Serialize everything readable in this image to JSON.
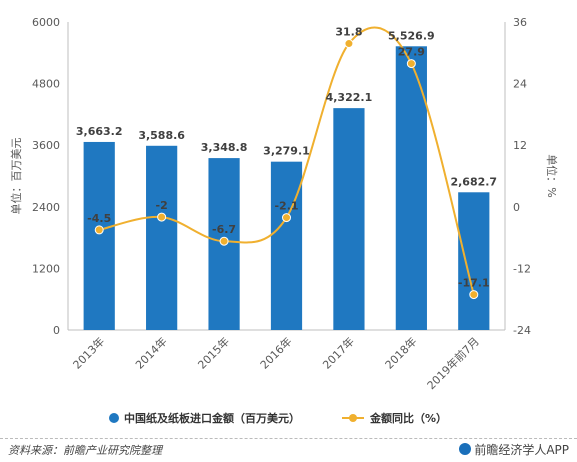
{
  "chart_data": {
    "type": "bar+line",
    "categories": [
      "2013年",
      "2014年",
      "2015年",
      "2016年",
      "2017年",
      "2018年",
      "2019年前7月"
    ],
    "bar_series": {
      "name": "中国纸及纸板进口金额（百万美元）",
      "values": [
        3663.2,
        3588.6,
        3348.8,
        3279.1,
        4322.1,
        5526.9,
        2682.7
      ],
      "labels": [
        "3,663.2",
        "3,588.6",
        "3,348.8",
        "3,279.1",
        "4,322.1",
        "5,526.9",
        "2,682.7"
      ],
      "color": "#1f78c1"
    },
    "line_series": {
      "name": "金额同比（%）",
      "values": [
        -4.5,
        -2,
        -6.7,
        -2.1,
        31.8,
        27.9,
        -17.1
      ],
      "labels": [
        "-4.5",
        "-2",
        "-6.7",
        "-2.1",
        "31.8",
        "27.9",
        "-17.1"
      ],
      "color": "#f0b02f"
    },
    "y_left": {
      "label": "单位：百万美元",
      "ticks": [
        "0",
        "1200",
        "2400",
        "3600",
        "4800",
        "6000"
      ],
      "range": [
        0,
        6000
      ]
    },
    "y_right": {
      "label": "单位：%",
      "ticks": [
        "-24",
        "-12",
        "0",
        "12",
        "24",
        "36"
      ],
      "range": [
        -24,
        36
      ]
    },
    "grid": false,
    "legend_position": "bottom"
  },
  "footer": {
    "source": "资料来源：前瞻产业研究院整理",
    "brand": "前瞻经济学人APP"
  }
}
